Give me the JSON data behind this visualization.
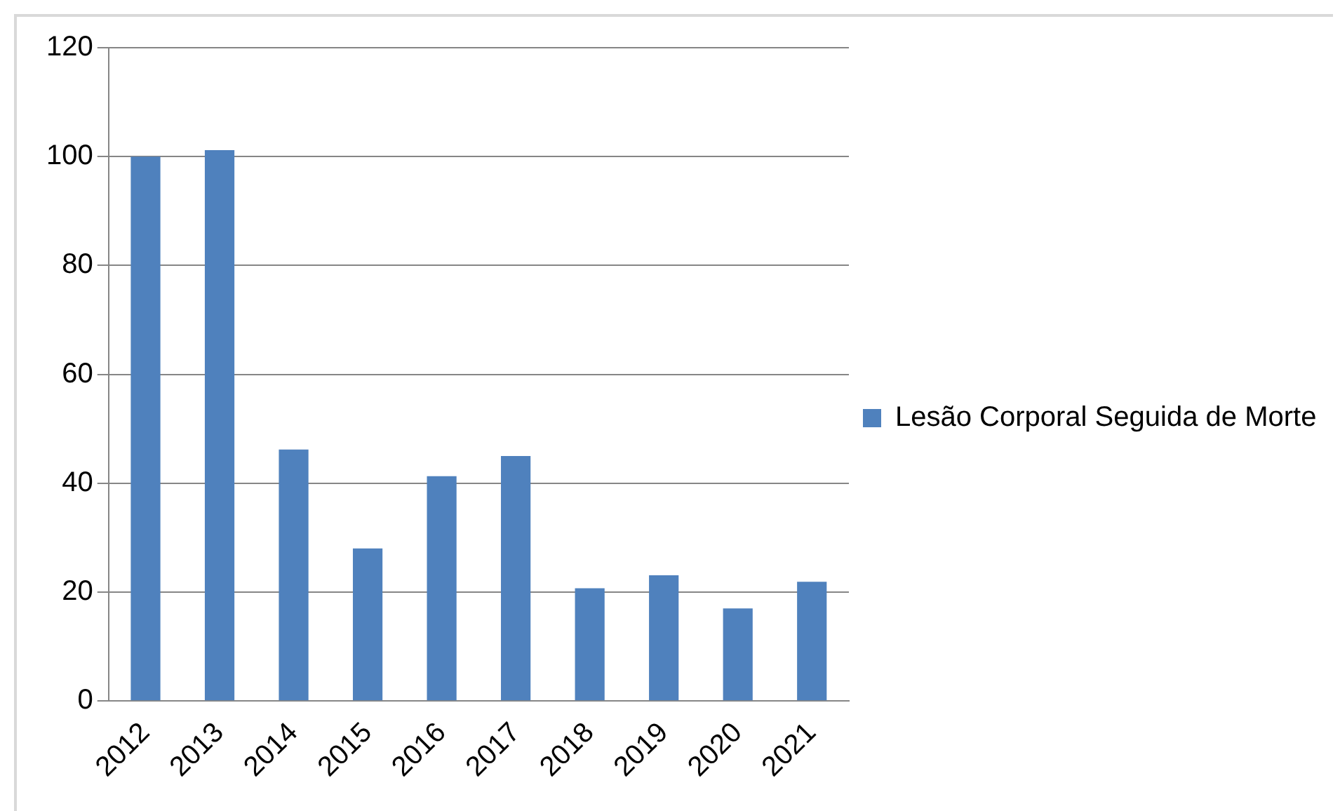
{
  "chart_data": {
    "type": "bar",
    "categories": [
      "2012",
      "2013",
      "2014",
      "2015",
      "2016",
      "2017",
      "2018",
      "2019",
      "2020",
      "2021"
    ],
    "series": [
      {
        "name": "Lesão Corporal Seguida de Morte",
        "color": "#4f81bd",
        "values": [
          100,
          101.2,
          46.2,
          28,
          41.3,
          45,
          20.7,
          23.1,
          17,
          21.9
        ]
      }
    ],
    "ylim": [
      0,
      120
    ],
    "yticks": [
      0,
      20,
      40,
      60,
      80,
      100,
      120
    ],
    "grid": "y",
    "legend": "right"
  }
}
